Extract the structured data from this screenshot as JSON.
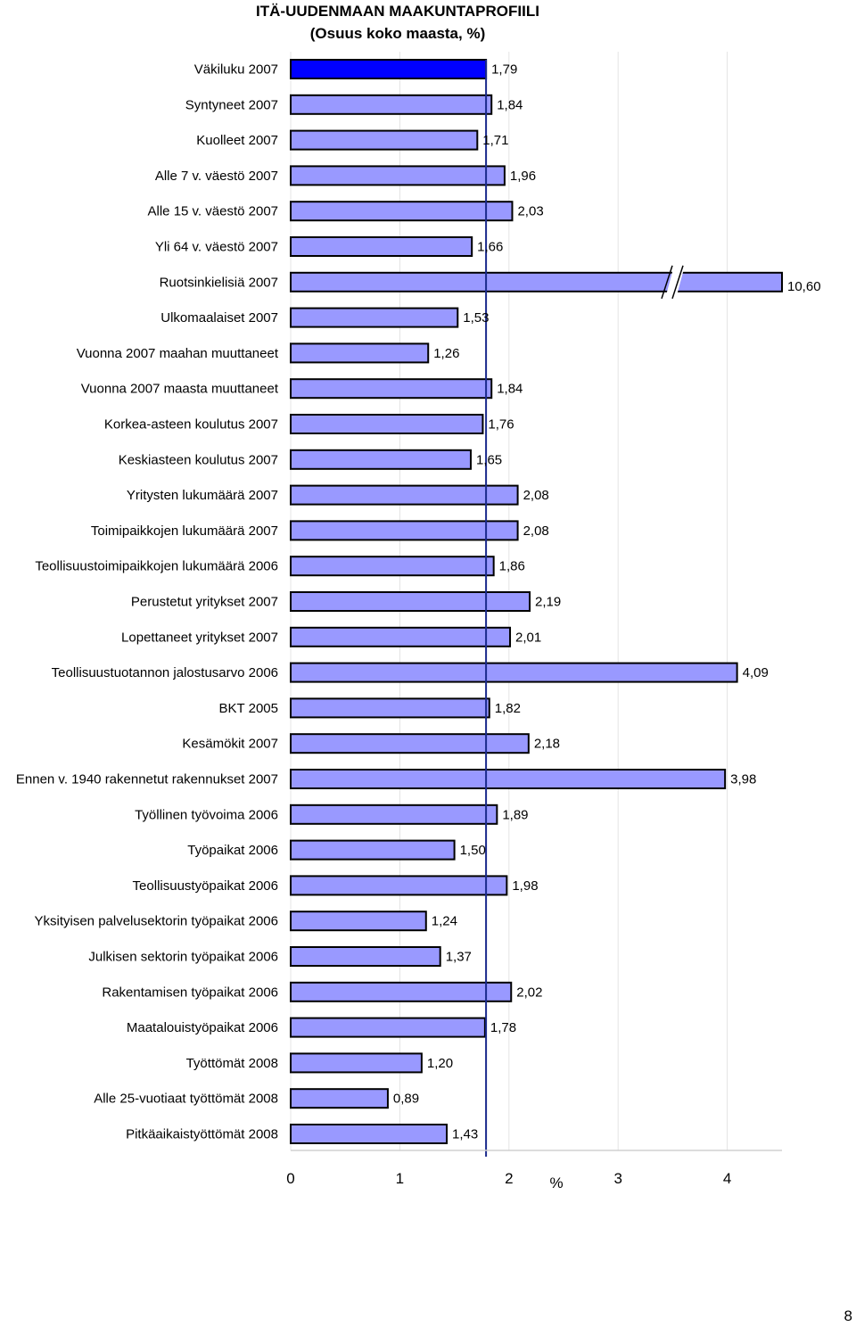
{
  "chart_data": {
    "type": "bar",
    "orientation": "horizontal",
    "title": "ITÄ-UUDENMAAN MAAKUNTAPROFIILI",
    "subtitle": "(Osuus koko maasta, %)",
    "xlabel": "%",
    "xlim": [
      0,
      4.5
    ],
    "x_ticks": [
      "0",
      "1",
      "2",
      "3",
      "4"
    ],
    "grid": "vertical",
    "reference_line": 1.79,
    "axis_break": true,
    "highlight_color": "#0000ff",
    "bar_color": "#9999ff",
    "reference_line_color": "#1a2a8c",
    "categories": [
      "Väkiluku 2007",
      "Syntyneet 2007",
      "Kuolleet 2007",
      "Alle 7 v. väestö 2007",
      "Alle 15 v. väestö 2007",
      "Yli 64 v. väestö 2007",
      "Ruotsinkielisiä 2007",
      "Ulkomaalaiset 2007",
      "Vuonna 2007 maahan muuttaneet",
      "Vuonna 2007 maasta muuttaneet",
      "Korkea-asteen koulutus 2007",
      "Keskiasteen koulutus 2007",
      "Yritysten lukumäärä 2007",
      "Toimipaikkojen lukumäärä 2007",
      "Teollisuustoimipaikkojen lukumäärä 2006",
      "Perustetut yritykset 2007",
      "Lopettaneet yritykset 2007",
      "Teollisuustuotannon jalostusarvo 2006",
      "BKT 2005",
      "Kesämökit 2007",
      "Ennen v. 1940 rakennetut rakennukset 2007",
      "Työllinen työvoima 2006",
      "Työpaikat 2006",
      "Teollisuustyöpaikat 2006",
      "Yksityisen palvelusektorin työpaikat 2006",
      "Julkisen sektorin työpaikat 2006",
      "Rakentamisen työpaikat 2006",
      "Maatalouistyöpaikat 2006",
      "Työttömät 2008",
      "Alle 25-vuotiaat työttömät 2008",
      "Pitkäaikaistyöttömät 2008"
    ],
    "values": [
      1.79,
      1.84,
      1.71,
      1.96,
      2.03,
      1.66,
      10.6,
      1.53,
      1.26,
      1.84,
      1.76,
      1.65,
      2.08,
      2.08,
      1.86,
      2.19,
      2.01,
      4.09,
      1.82,
      2.18,
      3.98,
      1.89,
      1.5,
      1.98,
      1.24,
      1.37,
      2.02,
      1.78,
      1.2,
      0.89,
      1.43
    ],
    "value_labels": [
      "1,79",
      "1,84",
      "1,71",
      "1,96",
      "2,03",
      "1,66",
      "10,60",
      "1,53",
      "1,26",
      "1,84",
      "1,76",
      "1,65",
      "2,08",
      "2,08",
      "1,86",
      "2,19",
      "2,01",
      "4,09",
      "1,82",
      "2,18",
      "3,98",
      "1,89",
      "1,50",
      "1,98",
      "1,24",
      "1,37",
      "2,02",
      "1,78",
      "1,20",
      "0,89",
      "1,43"
    ],
    "highlighted_index": 0,
    "broken_bar_index": 6
  },
  "page_number": "8"
}
